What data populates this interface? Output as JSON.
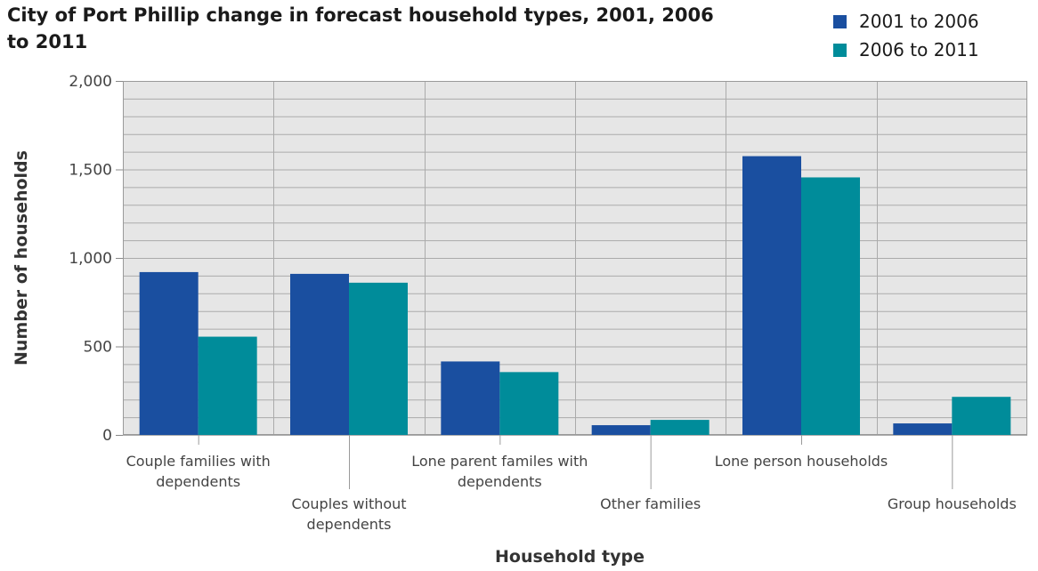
{
  "chart_data": {
    "type": "bar",
    "title": "City of Port Phillip change in forecast household types, 2001, 2006 to 2011",
    "xlabel": "Household type",
    "ylabel": "Number of households",
    "categories": [
      "Couple families with dependents",
      "Couples without dependents",
      "Lone parent familes with dependents",
      "Other families",
      "Lone person households",
      "Group households"
    ],
    "series": [
      {
        "name": "2001 to 2006",
        "color": "#1a4fa0",
        "values": [
          920,
          910,
          415,
          55,
          1575,
          65
        ]
      },
      {
        "name": "2006 to 2011",
        "color": "#008c9a",
        "values": [
          555,
          860,
          355,
          85,
          1455,
          215
        ]
      }
    ],
    "ylim": [
      0,
      2000
    ],
    "yticks": [
      0,
      500,
      1000,
      1500,
      2000
    ],
    "ytick_labels": [
      "0",
      "500",
      "1,000",
      "1,500",
      "2,000"
    ],
    "grid": true,
    "legend_position": "top-right",
    "plot_background": "#e6e6e6"
  }
}
